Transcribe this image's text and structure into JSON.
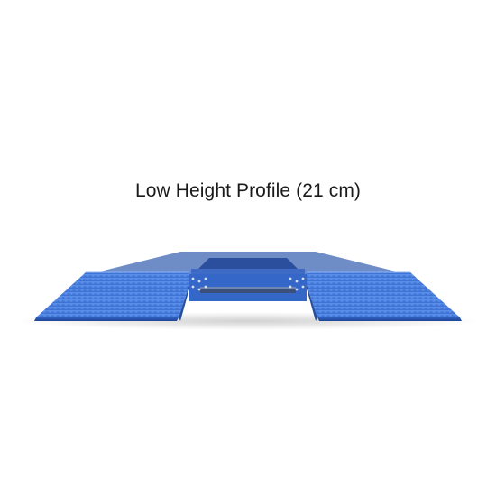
{
  "caption": "Low Height Profile (21 cm)",
  "colors": {
    "background": "#ffffff",
    "steel_blue": "#3f74d4",
    "steel_blue_dark": "#2b56a8",
    "steel_blue_light": "#5b8ee8",
    "caption_text": "#1a1a1a"
  },
  "image": {
    "subject": "blue-low-profile-vehicle-lift-platform-icon"
  }
}
